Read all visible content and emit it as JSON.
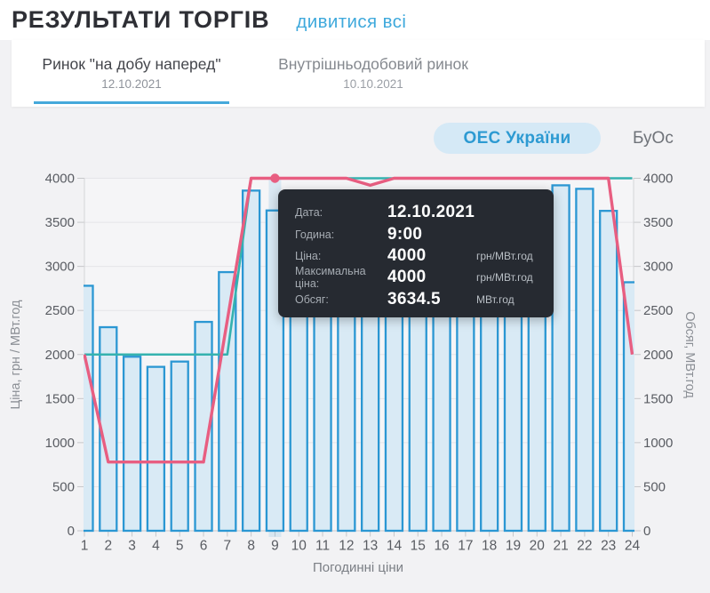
{
  "header": {
    "title": "РЕЗУЛЬТАТИ ТОРГІВ",
    "see_all_link": "дивитися всі"
  },
  "tabs": [
    {
      "label": "Ринок \"на добу наперед\"",
      "date": "12.10.2021",
      "active": true
    },
    {
      "label": "Внутрішньодобовий ринок",
      "date": "10.10.2021",
      "active": false
    }
  ],
  "zones": [
    {
      "label": "ОЕС України",
      "active": true
    },
    {
      "label": "БуОс",
      "active": false
    }
  ],
  "tooltip": {
    "rows": [
      {
        "label": "Дата:",
        "value": "12.10.2021",
        "unit": ""
      },
      {
        "label": "Година:",
        "value": "9:00",
        "unit": ""
      },
      {
        "label": "Ціна:",
        "value": "4000",
        "unit": "грн/МВт.год"
      },
      {
        "label": "Максимальна ціна:",
        "value": "4000",
        "unit": "грн/МВт.год"
      },
      {
        "label": "Обсяг:",
        "value": "3634.5",
        "unit": "МВт.год"
      }
    ]
  },
  "colors": {
    "accent_blue": "#3fa9dc",
    "tab_underline": "#45a9db",
    "pill_bg": "#d5e9f6",
    "pill_text": "#2d9ad2",
    "bar_fill": "#d9eaf5",
    "bar_stroke": "#2b97d3",
    "price_line": "#e85e81",
    "max_price_line": "#35b2af",
    "tooltip_bg": "#262a31"
  },
  "chart_data": {
    "type": "bar+line",
    "x": [
      1,
      2,
      3,
      4,
      5,
      6,
      7,
      8,
      9,
      10,
      11,
      12,
      13,
      14,
      15,
      16,
      17,
      18,
      19,
      20,
      21,
      22,
      23,
      24
    ],
    "xlabel": "Погодинні ціни",
    "ylabel_left": "Ціна, грн / МВт.год",
    "ylabel_right": "Обсяг, МВт.год",
    "ylim": [
      0,
      4000
    ],
    "ytick_step": 500,
    "grid": true,
    "legend": "none",
    "highlight": {
      "hour": 9,
      "date": "12.10.2021",
      "price": 4000,
      "max_price": 4000,
      "volume": 3634.5
    },
    "series": [
      {
        "name": "Обсяг",
        "type": "bar",
        "unit": "МВт.год",
        "fill": "#d9eaf5",
        "stroke": "#2b97d3",
        "values": [
          2780,
          2310,
          1975,
          1860,
          1920,
          2370,
          2935,
          3860,
          3634.5,
          3700,
          3760,
          3820,
          3850,
          3820,
          3780,
          3750,
          3720,
          3700,
          3750,
          3800,
          3920,
          3880,
          3630,
          2820
        ]
      },
      {
        "name": "Максимальна ціна",
        "type": "line",
        "unit": "грн/МВт.год",
        "color": "#35b2af",
        "values": [
          2000,
          2000,
          2000,
          2000,
          2000,
          2000,
          2000,
          4000,
          4000,
          4000,
          4000,
          4000,
          4000,
          4000,
          4000,
          4000,
          4000,
          4000,
          4000,
          4000,
          4000,
          4000,
          4000,
          4000
        ]
      },
      {
        "name": "Ціна",
        "type": "line",
        "unit": "грн/МВт.год",
        "color": "#e85e81",
        "values": [
          2000,
          780,
          780,
          780,
          780,
          780,
          2390,
          4000,
          4000,
          4000,
          4000,
          4000,
          3920,
          4000,
          4000,
          4000,
          4000,
          4000,
          4000,
          4000,
          4000,
          4000,
          4000,
          2000
        ]
      }
    ]
  }
}
